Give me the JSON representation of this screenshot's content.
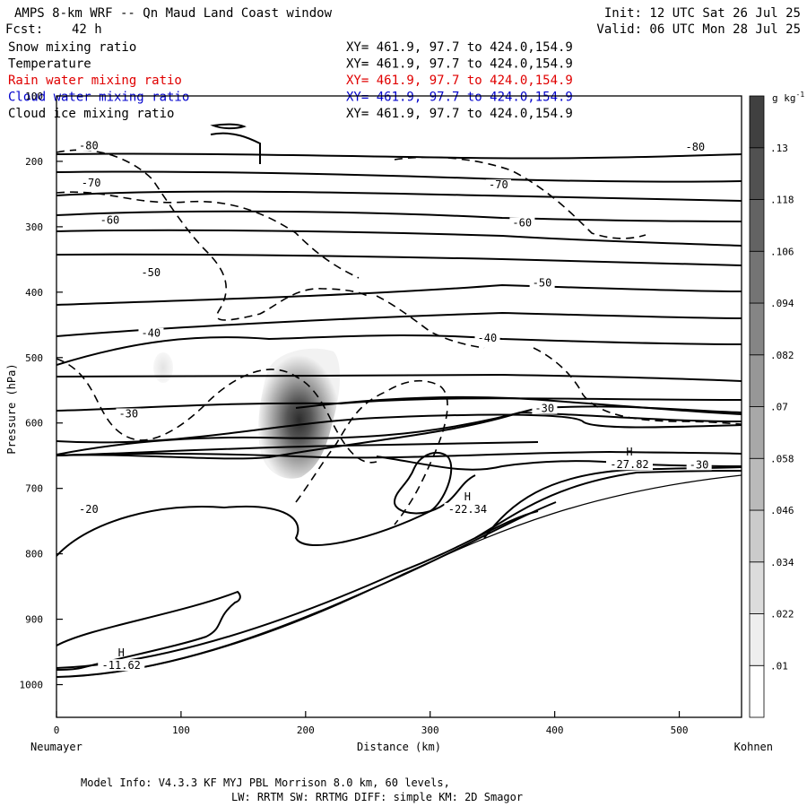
{
  "header": {
    "title": "AMPS 8-km WRF -- Qn Maud Land Coast window",
    "fcst_label": "Fcst:",
    "fcst_value": "42 h",
    "init": "Init: 12 UTC Sat 26 Jul 25",
    "valid": "Valid: 06 UTC Mon 28 Jul 25"
  },
  "fields": [
    {
      "name": "Snow mixing ratio",
      "xy": "XY= 461.9, 97.7 to 424.0,154.9",
      "color": "#000000"
    },
    {
      "name": "Temperature",
      "xy": "XY= 461.9, 97.7 to 424.0,154.9",
      "color": "#000000"
    },
    {
      "name": "Rain water mixing ratio",
      "xy": "XY= 461.9, 97.7 to 424.0,154.9",
      "color": "#e00000"
    },
    {
      "name": "Cloud water mixing ratio",
      "xy": "XY= 461.9, 97.7 to 424.0,154.9",
      "color": "#0000cc"
    },
    {
      "name": "Cloud ice mixing ratio",
      "xy": "XY= 461.9, 97.7 to 424.0,154.9",
      "color": "#000000"
    }
  ],
  "chart_data": {
    "type": "cross-section contour",
    "xlabel": "Distance (km)",
    "ylabel": "Pressure (hPa)",
    "xlim": [
      0,
      550
    ],
    "ylim": [
      1050,
      100
    ],
    "x_ticks": [
      0,
      100,
      200,
      300,
      400,
      500
    ],
    "y_ticks": [
      100,
      200,
      300,
      400,
      500,
      600,
      700,
      800,
      900,
      1000
    ],
    "left_endpoint": "Neumayer",
    "right_endpoint": "Kohnen",
    "colorbar": {
      "unit": "g kg",
      "unit_exponent": "-1",
      "levels": [
        0.01,
        0.022,
        0.034,
        0.046,
        0.058,
        0.07,
        0.082,
        0.094,
        0.106,
        0.118,
        0.13
      ],
      "labels": [
        ".01",
        ".022",
        ".034",
        ".046",
        ".058",
        ".07",
        ".082",
        ".094",
        ".106",
        ".118",
        ".13"
      ]
    },
    "temperature_contour_labels": [
      {
        "value": "-80",
        "x": 18,
        "p": 180
      },
      {
        "value": "-80",
        "x": 505,
        "p": 182
      },
      {
        "value": "-70",
        "x": 20,
        "p": 237
      },
      {
        "value": "-70",
        "x": 347,
        "p": 240
      },
      {
        "value": "-60",
        "x": 35,
        "p": 294
      },
      {
        "value": "-60",
        "x": 366,
        "p": 298
      },
      {
        "value": "-50",
        "x": 68,
        "p": 374
      },
      {
        "value": "-50",
        "x": 382,
        "p": 390
      },
      {
        "value": "-40",
        "x": 68,
        "p": 467
      },
      {
        "value": "-40",
        "x": 338,
        "p": 474
      },
      {
        "value": "-30",
        "x": 50,
        "p": 590
      },
      {
        "value": "-30",
        "x": 384,
        "p": 582
      },
      {
        "value": "-30",
        "x": 508,
        "p": 668
      },
      {
        "value": "-20",
        "x": 18,
        "p": 736
      }
    ],
    "extrema": [
      {
        "type": "H",
        "value": "-27.82",
        "x": 460,
        "p": 650
      },
      {
        "type": "H",
        "value": "-22.34",
        "x": 330,
        "p": 718
      },
      {
        "type": "H",
        "value": "-11.62",
        "x": 52,
        "p": 957
      }
    ],
    "snow_max": {
      "x": 185,
      "p": 605,
      "value": 0.13
    }
  },
  "footer": {
    "model_info": "Model Info: V4.3.3   KF      MYJ PBL  Morrison              8.0 km,  60 levels,",
    "physics": "LW: RRTM SW: RRTMG   DIFF: simple KM: 2D Smagor"
  }
}
